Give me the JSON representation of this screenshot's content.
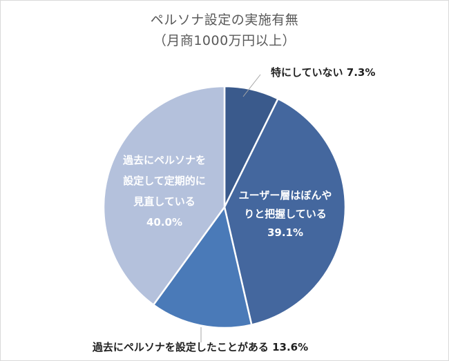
{
  "chart_data": {
    "type": "pie",
    "title": "ペルソナ設定の実施有無",
    "subtitle": "（月商1000万円以上）",
    "slices": [
      {
        "label": "特にしていない",
        "value": 7.3,
        "value_label": "7.3%",
        "color": "#3a5a8c",
        "label_lines": [
          "特にしていない 7.3%"
        ]
      },
      {
        "label": "ユーザー層はぼんやりと把握している",
        "value": 39.1,
        "value_label": "39.1%",
        "color": "#44679e",
        "label_lines": [
          "ユーザー層はぼんや",
          "りと把握している",
          "39.1%"
        ]
      },
      {
        "label": "過去にペルソナを設定したことがある",
        "value": 13.6,
        "value_label": "13.6%",
        "color": "#4a7ab8",
        "label_lines": [
          "過去にペルソナを設定したことがある 13.6%"
        ]
      },
      {
        "label": "過去にペルソナを設定して定期的に見直している",
        "value": 40.0,
        "value_label": "40.0%",
        "color": "#b4c1dc",
        "label_lines": [
          "過去にペルソナを",
          "設定して定期的に",
          "見直している",
          "40.0%"
        ]
      }
    ]
  }
}
